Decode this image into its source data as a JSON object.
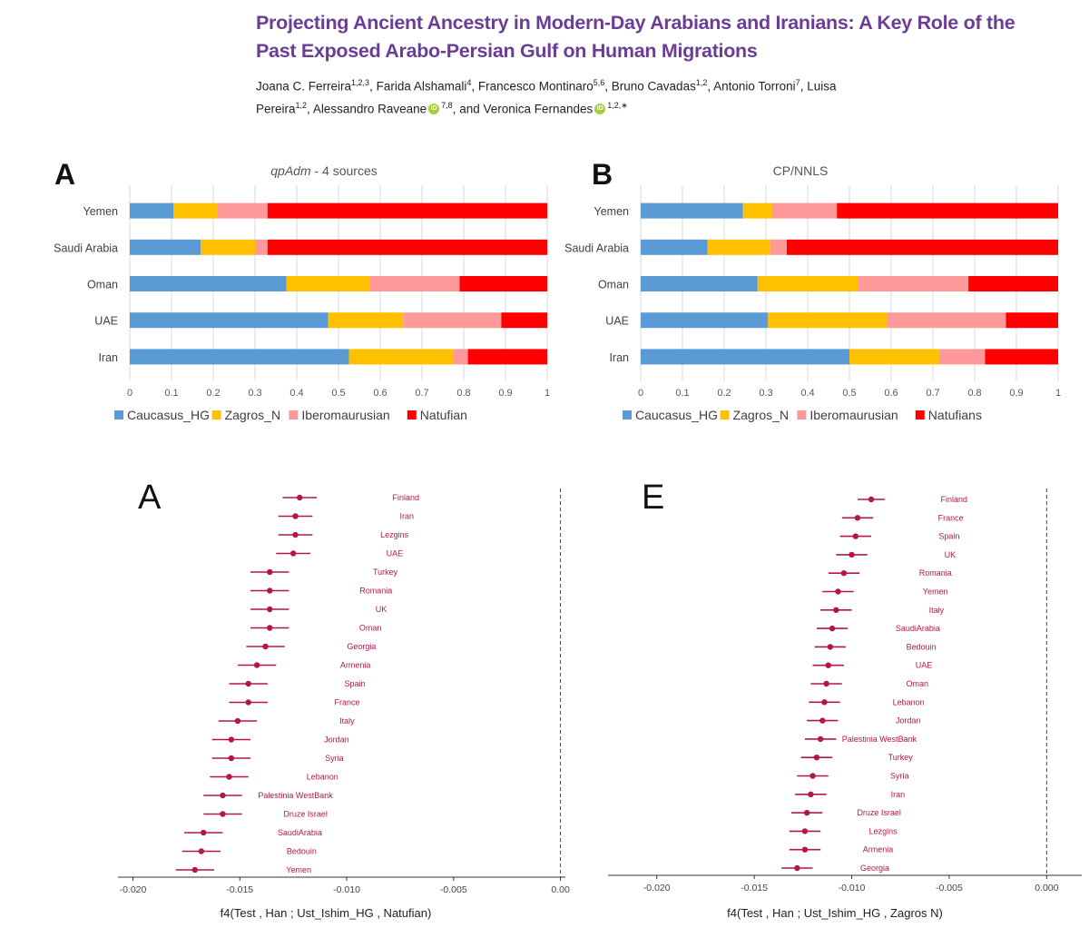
{
  "paper": {
    "title": "Projecting Ancient Ancestry in Modern-Day Arabians and Iranians: A Key Role of the Past Exposed Arabo-Persian Gulf on Human Migrations",
    "authors": [
      {
        "name": "Joana C. Ferreira",
        "aff": "1,2,3",
        "orcid": false
      },
      {
        "name": "Farida Alshamali",
        "aff": "4",
        "orcid": false
      },
      {
        "name": "Francesco Montinaro",
        "aff": "5,6",
        "orcid": false
      },
      {
        "name": "Bruno Cavadas",
        "aff": "1,2",
        "orcid": false
      },
      {
        "name": "Antonio Torroni",
        "aff": "7",
        "orcid": false
      },
      {
        "name": "Luisa Pereira",
        "aff": "1,2",
        "orcid": false
      },
      {
        "name": "Alessandro Raveane",
        "aff": "7,8",
        "orcid": true
      },
      {
        "name": "and Veronica Fernandes",
        "aff": "1,2,∗",
        "orcid": true
      }
    ]
  },
  "colors": {
    "title": "#6b3d97",
    "caucasus": "#5b9bd5",
    "zagros": "#ffc000",
    "ibero": "#ff9999",
    "natufian": "#ff0000",
    "dot": "#b3164b",
    "label": "#b3164b"
  },
  "chart_data": [
    {
      "type": "bar",
      "stacked": true,
      "orientation": "horizontal",
      "panel": "A",
      "title": "qpAdm - 4 sources",
      "categories": [
        "Yemen",
        "Saudi Arabia",
        "Oman",
        "UAE",
        "Iran"
      ],
      "series": [
        {
          "name": "Caucasus_HG",
          "values": [
            0.105,
            0.17,
            0.375,
            0.475,
            0.525
          ]
        },
        {
          "name": "Zagros_N",
          "values": [
            0.105,
            0.13,
            0.2,
            0.18,
            0.25
          ]
        },
        {
          "name": "Iberomaurusian",
          "values": [
            0.12,
            0.03,
            0.215,
            0.235,
            0.035
          ]
        },
        {
          "name": "Natufian",
          "values": [
            0.67,
            0.67,
            0.21,
            0.11,
            0.19
          ]
        }
      ],
      "xlim": [
        0,
        1
      ],
      "xticks": [
        "0",
        "0.1",
        "0.2",
        "0.3",
        "0.4",
        "0.5",
        "0.6",
        "0.7",
        "0.8",
        "0.9",
        "1"
      ],
      "grid": true,
      "legend": "bottom"
    },
    {
      "type": "bar",
      "stacked": true,
      "orientation": "horizontal",
      "panel": "B",
      "title": "CP/NNLS",
      "categories": [
        "Yemen",
        "Saudi Arabia",
        "Oman",
        "UAE",
        "Iran"
      ],
      "series": [
        {
          "name": "Caucasus_HG",
          "values": [
            0.245,
            0.16,
            0.28,
            0.305,
            0.5
          ]
        },
        {
          "name": "Zagros_N",
          "values": [
            0.07,
            0.15,
            0.24,
            0.285,
            0.215
          ]
        },
        {
          "name": "Iberomaurusian",
          "values": [
            0.155,
            0.04,
            0.265,
            0.285,
            0.11
          ]
        },
        {
          "name": "Natufians",
          "values": [
            0.53,
            0.65,
            0.215,
            0.125,
            0.175
          ]
        }
      ],
      "xlim": [
        0,
        1
      ],
      "xticks": [
        "0",
        "0.1",
        "0.2",
        "0.3",
        "0.4",
        "0.5",
        "0.6",
        "0.7",
        "0.8",
        "0.9",
        "1"
      ],
      "grid": true,
      "legend": "bottom"
    },
    {
      "type": "scatter",
      "panel": "A",
      "xlabel": "f4(Test , Han ; Ust_Ishim_HG , Natufian)",
      "xlim": [
        -0.0207,
        0.0004
      ],
      "xticks": [
        "-0.020",
        "-0.015",
        "-0.010",
        "-0.005",
        "0.00"
      ],
      "reference_line": 0,
      "points": [
        {
          "label": "Finland",
          "x": -0.0122,
          "lo": -0.013,
          "hi": -0.0114
        },
        {
          "label": "Iran",
          "x": -0.0124,
          "lo": -0.0132,
          "hi": -0.0116
        },
        {
          "label": "Lezgins",
          "x": -0.0124,
          "lo": -0.0132,
          "hi": -0.0116
        },
        {
          "label": "UAE",
          "x": -0.0125,
          "lo": -0.0133,
          "hi": -0.0117
        },
        {
          "label": "Turkey",
          "x": -0.0136,
          "lo": -0.0145,
          "hi": -0.0127
        },
        {
          "label": "Romania",
          "x": -0.0136,
          "lo": -0.0145,
          "hi": -0.0127
        },
        {
          "label": "UK",
          "x": -0.0136,
          "lo": -0.0145,
          "hi": -0.0127
        },
        {
          "label": "Oman",
          "x": -0.0136,
          "lo": -0.0145,
          "hi": -0.0127
        },
        {
          "label": "Georgia",
          "x": -0.0138,
          "lo": -0.0147,
          "hi": -0.0129
        },
        {
          "label": "Armenia",
          "x": -0.0142,
          "lo": -0.0151,
          "hi": -0.0133
        },
        {
          "label": "Spain",
          "x": -0.0146,
          "lo": -0.0155,
          "hi": -0.0137
        },
        {
          "label": "France",
          "x": -0.0146,
          "lo": -0.0155,
          "hi": -0.0137
        },
        {
          "label": "Italy",
          "x": -0.0151,
          "lo": -0.016,
          "hi": -0.0142
        },
        {
          "label": "Jordan",
          "x": -0.0154,
          "lo": -0.0163,
          "hi": -0.0145
        },
        {
          "label": "Syria",
          "x": -0.0154,
          "lo": -0.0163,
          "hi": -0.0145
        },
        {
          "label": "Lebanon",
          "x": -0.0155,
          "lo": -0.0164,
          "hi": -0.0146
        },
        {
          "label": "Palestinia WestBank",
          "x": -0.0158,
          "lo": -0.0167,
          "hi": -0.0149
        },
        {
          "label": "Druze Israel",
          "x": -0.0158,
          "lo": -0.0167,
          "hi": -0.0149
        },
        {
          "label": "SaudiArabia",
          "x": -0.0167,
          "lo": -0.0176,
          "hi": -0.0158
        },
        {
          "label": "Bedouin",
          "x": -0.0168,
          "lo": -0.0177,
          "hi": -0.0159
        },
        {
          "label": "Yemen",
          "x": -0.0171,
          "lo": -0.018,
          "hi": -0.0162
        }
      ]
    },
    {
      "type": "scatter",
      "panel": "E",
      "xlabel": "f4(Test , Han ; Ust_Ishim_HG , Zagros N)",
      "xlim": [
        -0.0225,
        0.0018
      ],
      "xticks": [
        "-0.020",
        "-0.015",
        "-0.010",
        "-0.005",
        "0.000"
      ],
      "reference_line": 0,
      "points": [
        {
          "label": "Finland",
          "x": -0.009,
          "lo": -0.0097,
          "hi": -0.0083
        },
        {
          "label": "France",
          "x": -0.0097,
          "lo": -0.0105,
          "hi": -0.0089
        },
        {
          "label": "Spain",
          "x": -0.0098,
          "lo": -0.0106,
          "hi": -0.009
        },
        {
          "label": "UK",
          "x": -0.01,
          "lo": -0.0108,
          "hi": -0.0092
        },
        {
          "label": "Romania",
          "x": -0.0104,
          "lo": -0.0112,
          "hi": -0.0096
        },
        {
          "label": "Yemen",
          "x": -0.0107,
          "lo": -0.0115,
          "hi": -0.0099
        },
        {
          "label": "Italy",
          "x": -0.0108,
          "lo": -0.0116,
          "hi": -0.01
        },
        {
          "label": "SaudiArabia",
          "x": -0.011,
          "lo": -0.0118,
          "hi": -0.0102
        },
        {
          "label": "Bedouin",
          "x": -0.0111,
          "lo": -0.0119,
          "hi": -0.0103
        },
        {
          "label": "UAE",
          "x": -0.0112,
          "lo": -0.012,
          "hi": -0.0104
        },
        {
          "label": "Oman",
          "x": -0.0113,
          "lo": -0.0121,
          "hi": -0.0105
        },
        {
          "label": "Lebanon",
          "x": -0.0114,
          "lo": -0.0122,
          "hi": -0.0106
        },
        {
          "label": "Jordan",
          "x": -0.0115,
          "lo": -0.0123,
          "hi": -0.0107
        },
        {
          "label": "Palestinia WestBank",
          "x": -0.0116,
          "lo": -0.0124,
          "hi": -0.0108
        },
        {
          "label": "Turkey",
          "x": -0.0118,
          "lo": -0.0126,
          "hi": -0.011
        },
        {
          "label": "Syria",
          "x": -0.012,
          "lo": -0.0128,
          "hi": -0.0112
        },
        {
          "label": "Iran",
          "x": -0.0121,
          "lo": -0.0129,
          "hi": -0.0113
        },
        {
          "label": "Druze Israel",
          "x": -0.0123,
          "lo": -0.0131,
          "hi": -0.0115
        },
        {
          "label": "Lezgins",
          "x": -0.0124,
          "lo": -0.0132,
          "hi": -0.0116
        },
        {
          "label": "Armenia",
          "x": -0.0124,
          "lo": -0.0132,
          "hi": -0.0116
        },
        {
          "label": "Georgia",
          "x": -0.0128,
          "lo": -0.0136,
          "hi": -0.012
        }
      ]
    }
  ]
}
